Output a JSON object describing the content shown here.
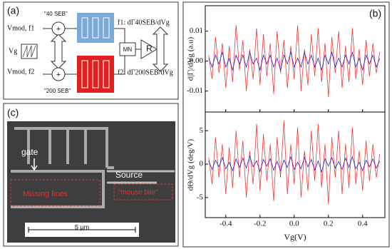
{
  "panel_a": {
    "label": "(a)",
    "seb40": "\"40 SEB\"",
    "seb200": "\"200 SEB\"",
    "vmod1": "Vmod, f1",
    "vmod2": "Vmod, f2",
    "vg": "Vg",
    "plus1": "+",
    "plus2": "+",
    "mn": "MN",
    "r": "R",
    "out1": "f1: dΓ40SEB/dVg",
    "out2": "f2: dΓ200SEB/dVg"
  },
  "panel_b": {
    "label": "(b)"
  },
  "chart_data": [
    {
      "type": "line",
      "ylabel": "d|Γ|/dVg (a.u)",
      "x": [
        -0.5,
        -0.48,
        -0.46,
        -0.44,
        -0.42,
        -0.4,
        -0.38,
        -0.36,
        -0.34,
        -0.32,
        -0.3,
        -0.28,
        -0.26,
        -0.24,
        -0.22,
        -0.2,
        -0.18,
        -0.16,
        -0.14,
        -0.12,
        -0.1,
        -0.08,
        -0.06,
        -0.04,
        -0.02,
        0,
        0.02,
        0.04,
        0.06,
        0.08,
        0.1,
        0.12,
        0.14,
        0.16,
        0.18,
        0.2,
        0.22,
        0.24,
        0.26,
        0.28,
        0.3,
        0.32,
        0.34,
        0.36,
        0.38,
        0.4,
        0.42,
        0.44,
        0.46,
        0.48,
        0.5
      ],
      "xlim": [
        -0.52,
        0.53
      ],
      "ylim": [
        -0.017,
        0.0185
      ],
      "yticks": [
        -0.01,
        {
          "value": 0,
          "label": "0.00"
        },
        0.01
      ],
      "series": [
        {
          "color": "#f03a3a",
          "values": [
            0.002,
            -0.006,
            0.008,
            -0.004,
            0.006,
            -0.009,
            0.005,
            -0.007,
            0.012,
            -0.003,
            0.007,
            -0.01,
            0.004,
            -0.006,
            0.011,
            -0.008,
            0.009,
            -0.005,
            0.006,
            -0.011,
            0.01,
            -0.004,
            0.007,
            -0.009,
            0.005,
            -0.006,
            0.012,
            -0.01,
            0.004,
            -0.008,
            0.009,
            -0.005,
            0.011,
            -0.007,
            0.006,
            -0.012,
            0.008,
            -0.004,
            0.01,
            -0.009,
            0.005,
            -0.007,
            0.011,
            -0.006,
            0.004,
            -0.008,
            0.007,
            -0.005,
            0.006,
            -0.004,
            0.003
          ]
        },
        {
          "color": "#2626c8",
          "values": [
            0.001,
            -0.002,
            0.002,
            -0.001,
            0.003,
            -0.002,
            0.001,
            -0.003,
            0.002,
            -0.001,
            0.002,
            -0.002,
            0.003,
            -0.001,
            0.001,
            -0.003,
            0.002,
            -0.001,
            0.002,
            -0.002,
            0.001,
            -0.003,
            0.002,
            -0.001,
            0.003,
            -0.002,
            0.001,
            -0.002,
            0.003,
            -0.001,
            0.002,
            -0.002,
            0.001,
            -0.003,
            0.002,
            -0.001,
            0.003,
            -0.002,
            0.001,
            -0.002,
            0.002,
            -0.001,
            0.003,
            -0.002,
            0.001,
            -0.003,
            0.002,
            -0.001,
            0.002,
            -0.002,
            0.001
          ]
        }
      ]
    },
    {
      "type": "line",
      "ylabel": "dΘ/dVg (deg/V)",
      "xlabel": "Vg(V)",
      "x": [
        -0.5,
        -0.48,
        -0.46,
        -0.44,
        -0.42,
        -0.4,
        -0.38,
        -0.36,
        -0.34,
        -0.32,
        -0.3,
        -0.28,
        -0.26,
        -0.24,
        -0.22,
        -0.2,
        -0.18,
        -0.16,
        -0.14,
        -0.12,
        -0.1,
        -0.08,
        -0.06,
        -0.04,
        -0.02,
        0,
        0.02,
        0.04,
        0.06,
        0.08,
        0.1,
        0.12,
        0.14,
        0.16,
        0.18,
        0.2,
        0.22,
        0.24,
        0.26,
        0.28,
        0.3,
        0.32,
        0.34,
        0.36,
        0.38,
        0.4,
        0.42,
        0.44,
        0.46,
        0.48,
        0.5
      ],
      "xlim": [
        -0.52,
        0.53
      ],
      "ylim": [
        -8,
        7.8
      ],
      "xticks": [
        -0.4,
        -0.2,
        {
          "value": 0,
          "label": "0.0"
        },
        0.2,
        0.4
      ],
      "yticks": [
        -5,
        0,
        5
      ],
      "series": [
        {
          "color": "#f03a3a",
          "values": [
            1,
            -3,
            4,
            -2,
            3,
            -4.5,
            2.5,
            -3.5,
            5,
            -2,
            3.5,
            -5,
            2,
            -3,
            6,
            -4,
            4.5,
            -2.5,
            3,
            -5.5,
            4,
            -2,
            6.5,
            -4.5,
            3,
            -3,
            5.5,
            -5,
            2,
            -4,
            5,
            -2.5,
            6,
            -3.5,
            3,
            -6,
            4,
            -2,
            5,
            -4.5,
            3,
            -3.5,
            5.5,
            -3,
            2,
            -4,
            3.5,
            -2.5,
            3,
            -2,
            1.5
          ]
        },
        {
          "color": "#2626c8",
          "values": [
            0.5,
            -0.8,
            0.6,
            -0.4,
            1,
            -0.7,
            0.3,
            -1,
            0.8,
            -0.5,
            0.9,
            -0.6,
            1.2,
            -0.4,
            0.5,
            -1.1,
            0.7,
            -0.3,
            0.8,
            -0.9,
            0.4,
            -1,
            0.6,
            -0.5,
            1.1,
            -0.8,
            0.3,
            -0.7,
            1,
            -0.4,
            0.7,
            -0.9,
            0.5,
            -1.2,
            0.8,
            -0.3,
            1,
            -0.6,
            0.4,
            -0.8,
            0.9,
            -0.5,
            1.1,
            -0.7,
            0.3,
            -1,
            0.6,
            -0.4,
            0.8,
            -0.6,
            0.5
          ]
        }
      ]
    }
  ],
  "panel_c": {
    "label": "(c)",
    "gate": "gate",
    "source": "Source",
    "missing": "Missing lines",
    "bite": "\"mouse bite\"",
    "scale": "5 μm"
  }
}
